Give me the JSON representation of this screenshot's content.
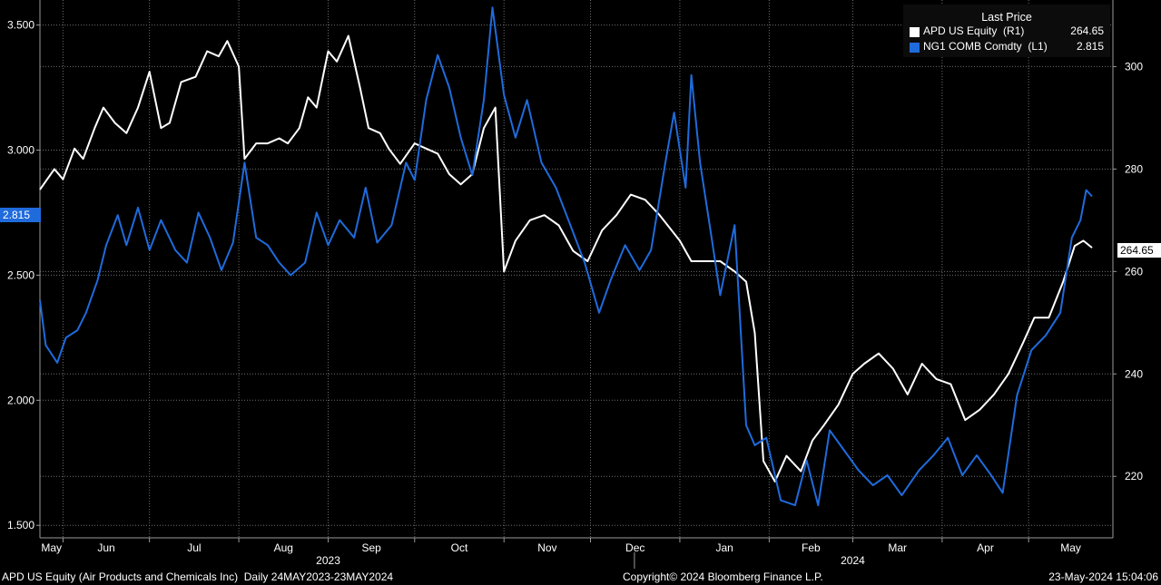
{
  "legend": {
    "title": "Last Price",
    "items": [
      {
        "name": "APD US Equity  (R1)",
        "value": "264.65",
        "color": "#ffffff"
      },
      {
        "name": "NG1 COMB Comdty  (L1)",
        "value": "2.815",
        "color": "#1f6bdc"
      }
    ]
  },
  "footer": {
    "left": "APD US Equity (Air Products and Chemicals Inc)  Daily 24MAY2023-23MAY2024",
    "center": "Copyright© 2024 Bloomberg Finance L.P.",
    "right": "23-May-2024 15:04:06"
  },
  "tags": {
    "left": "2.815",
    "right": "264.65"
  },
  "chart_data": {
    "type": "line",
    "x_range": [
      "2023-05-24",
      "2024-05-23"
    ],
    "months": [
      {
        "label": "May",
        "date": "2023-05-01"
      },
      {
        "label": "Jun",
        "date": "2023-06-01"
      },
      {
        "label": "Jul",
        "date": "2023-07-01"
      },
      {
        "label": "Aug",
        "date": "2023-08-01"
      },
      {
        "label": "Sep",
        "date": "2023-09-01"
      },
      {
        "label": "Oct",
        "date": "2023-10-01"
      },
      {
        "label": "Nov",
        "date": "2023-11-01"
      },
      {
        "label": "Dec",
        "date": "2023-12-01"
      },
      {
        "label": "Jan",
        "date": "2024-01-01"
      },
      {
        "label": "Feb",
        "date": "2024-02-01"
      },
      {
        "label": "Mar",
        "date": "2024-03-01"
      },
      {
        "label": "Apr",
        "date": "2024-04-01"
      },
      {
        "label": "May",
        "date": "2024-05-01"
      }
    ],
    "years": [
      {
        "label": "2023",
        "date": "2023-09-01"
      },
      {
        "label": "2024",
        "date": "2024-03-01"
      }
    ],
    "left_axis": {
      "range": [
        1.45,
        3.6
      ],
      "ticks": [
        "1.500",
        "2.000",
        "2.500",
        "3.000",
        "3.500"
      ]
    },
    "right_axis": {
      "range": [
        208,
        313
      ],
      "ticks": [
        "220",
        "240",
        "260",
        "280",
        "300"
      ]
    },
    "series": [
      {
        "name": "APD US Equity",
        "axis": "right",
        "color": "#ffffff",
        "points": [
          [
            "2023-05-24",
            276
          ],
          [
            "2023-05-29",
            280
          ],
          [
            "2023-06-01",
            278
          ],
          [
            "2023-06-05",
            284
          ],
          [
            "2023-06-08",
            282
          ],
          [
            "2023-06-12",
            288
          ],
          [
            "2023-06-15",
            292
          ],
          [
            "2023-06-19",
            289
          ],
          [
            "2023-06-23",
            287
          ],
          [
            "2023-06-27",
            292
          ],
          [
            "2023-07-01",
            299
          ],
          [
            "2023-07-05",
            288
          ],
          [
            "2023-07-08",
            289
          ],
          [
            "2023-07-12",
            297
          ],
          [
            "2023-07-17",
            298
          ],
          [
            "2023-07-21",
            303
          ],
          [
            "2023-07-25",
            302
          ],
          [
            "2023-07-28",
            305
          ],
          [
            "2023-08-01",
            300
          ],
          [
            "2023-08-03",
            282
          ],
          [
            "2023-08-07",
            285
          ],
          [
            "2023-08-11",
            285
          ],
          [
            "2023-08-15",
            286
          ],
          [
            "2023-08-18",
            285
          ],
          [
            "2023-08-22",
            288
          ],
          [
            "2023-08-25",
            294
          ],
          [
            "2023-08-28",
            292
          ],
          [
            "2023-09-01",
            303
          ],
          [
            "2023-09-04",
            301
          ],
          [
            "2023-09-08",
            306
          ],
          [
            "2023-09-12",
            296
          ],
          [
            "2023-09-15",
            288
          ],
          [
            "2023-09-19",
            287
          ],
          [
            "2023-09-22",
            284
          ],
          [
            "2023-09-26",
            281
          ],
          [
            "2023-10-01",
            285
          ],
          [
            "2023-10-05",
            284
          ],
          [
            "2023-10-09",
            283
          ],
          [
            "2023-10-13",
            279
          ],
          [
            "2023-10-17",
            277
          ],
          [
            "2023-10-21",
            279
          ],
          [
            "2023-10-25",
            288
          ],
          [
            "2023-10-29",
            292
          ],
          [
            "2023-11-01",
            260
          ],
          [
            "2023-11-05",
            266
          ],
          [
            "2023-11-10",
            270
          ],
          [
            "2023-11-15",
            271
          ],
          [
            "2023-11-20",
            269
          ],
          [
            "2023-11-25",
            264
          ],
          [
            "2023-11-30",
            262
          ],
          [
            "2023-12-05",
            268
          ],
          [
            "2023-12-10",
            271
          ],
          [
            "2023-12-15",
            275
          ],
          [
            "2023-12-20",
            274
          ],
          [
            "2023-12-25",
            271
          ],
          [
            "2024-01-01",
            266
          ],
          [
            "2024-01-05",
            262
          ],
          [
            "2024-01-10",
            262
          ],
          [
            "2024-01-15",
            262
          ],
          [
            "2024-01-20",
            260
          ],
          [
            "2024-01-24",
            258
          ],
          [
            "2024-01-27",
            248
          ],
          [
            "2024-01-30",
            223
          ],
          [
            "2024-02-03",
            219
          ],
          [
            "2024-02-07",
            224
          ],
          [
            "2024-02-12",
            221
          ],
          [
            "2024-02-16",
            227
          ],
          [
            "2024-02-20",
            230
          ],
          [
            "2024-02-25",
            234
          ],
          [
            "2024-03-01",
            240
          ],
          [
            "2024-03-05",
            242
          ],
          [
            "2024-03-10",
            244
          ],
          [
            "2024-03-15",
            241
          ],
          [
            "2024-03-20",
            236
          ],
          [
            "2024-03-25",
            242
          ],
          [
            "2024-03-30",
            239
          ],
          [
            "2024-04-04",
            238
          ],
          [
            "2024-04-09",
            231
          ],
          [
            "2024-04-14",
            233
          ],
          [
            "2024-04-19",
            236
          ],
          [
            "2024-04-24",
            240
          ],
          [
            "2024-04-29",
            246
          ],
          [
            "2024-05-03",
            251
          ],
          [
            "2024-05-08",
            251
          ],
          [
            "2024-05-13",
            258
          ],
          [
            "2024-05-17",
            265
          ],
          [
            "2024-05-20",
            266
          ],
          [
            "2024-05-23",
            264.65
          ]
        ]
      },
      {
        "name": "NG1 COMB Comdty",
        "axis": "left",
        "color": "#1f6bdc",
        "points": [
          [
            "2023-05-24",
            2.4
          ],
          [
            "2023-05-26",
            2.22
          ],
          [
            "2023-05-30",
            2.15
          ],
          [
            "2023-06-02",
            2.25
          ],
          [
            "2023-06-06",
            2.28
          ],
          [
            "2023-06-09",
            2.35
          ],
          [
            "2023-06-13",
            2.48
          ],
          [
            "2023-06-16",
            2.62
          ],
          [
            "2023-06-20",
            2.74
          ],
          [
            "2023-06-23",
            2.62
          ],
          [
            "2023-06-27",
            2.77
          ],
          [
            "2023-07-01",
            2.6
          ],
          [
            "2023-07-05",
            2.72
          ],
          [
            "2023-07-10",
            2.6
          ],
          [
            "2023-07-14",
            2.55
          ],
          [
            "2023-07-18",
            2.75
          ],
          [
            "2023-07-22",
            2.65
          ],
          [
            "2023-07-26",
            2.52
          ],
          [
            "2023-07-30",
            2.63
          ],
          [
            "2023-08-03",
            2.95
          ],
          [
            "2023-08-07",
            2.65
          ],
          [
            "2023-08-11",
            2.62
          ],
          [
            "2023-08-15",
            2.55
          ],
          [
            "2023-08-19",
            2.5
          ],
          [
            "2023-08-24",
            2.55
          ],
          [
            "2023-08-28",
            2.75
          ],
          [
            "2023-09-01",
            2.62
          ],
          [
            "2023-09-05",
            2.72
          ],
          [
            "2023-09-10",
            2.65
          ],
          [
            "2023-09-14",
            2.85
          ],
          [
            "2023-09-18",
            2.63
          ],
          [
            "2023-09-23",
            2.7
          ],
          [
            "2023-09-28",
            2.95
          ],
          [
            "2023-10-01",
            2.88
          ],
          [
            "2023-10-05",
            3.2
          ],
          [
            "2023-10-09",
            3.38
          ],
          [
            "2023-10-13",
            3.25
          ],
          [
            "2023-10-17",
            3.05
          ],
          [
            "2023-10-21",
            2.9
          ],
          [
            "2023-10-25",
            3.2
          ],
          [
            "2023-10-28",
            3.57
          ],
          [
            "2023-11-01",
            3.22
          ],
          [
            "2023-11-05",
            3.05
          ],
          [
            "2023-11-09",
            3.2
          ],
          [
            "2023-11-14",
            2.95
          ],
          [
            "2023-11-19",
            2.85
          ],
          [
            "2023-11-24",
            2.7
          ],
          [
            "2023-11-29",
            2.55
          ],
          [
            "2023-12-04",
            2.35
          ],
          [
            "2023-12-08",
            2.48
          ],
          [
            "2023-12-13",
            2.62
          ],
          [
            "2023-12-18",
            2.52
          ],
          [
            "2023-12-22",
            2.6
          ],
          [
            "2023-12-27",
            2.95
          ],
          [
            "2023-12-30",
            3.15
          ],
          [
            "2024-01-03",
            2.85
          ],
          [
            "2024-01-05",
            3.3
          ],
          [
            "2024-01-08",
            2.95
          ],
          [
            "2024-01-12",
            2.65
          ],
          [
            "2024-01-15",
            2.42
          ],
          [
            "2024-01-20",
            2.7
          ],
          [
            "2024-01-24",
            1.9
          ],
          [
            "2024-01-27",
            1.82
          ],
          [
            "2024-01-31",
            1.85
          ],
          [
            "2024-02-05",
            1.6
          ],
          [
            "2024-02-10",
            1.58
          ],
          [
            "2024-02-14",
            1.76
          ],
          [
            "2024-02-18",
            1.58
          ],
          [
            "2024-02-22",
            1.88
          ],
          [
            "2024-02-27",
            1.8
          ],
          [
            "2024-03-03",
            1.72
          ],
          [
            "2024-03-08",
            1.66
          ],
          [
            "2024-03-13",
            1.7
          ],
          [
            "2024-03-18",
            1.62
          ],
          [
            "2024-03-24",
            1.72
          ],
          [
            "2024-03-29",
            1.78
          ],
          [
            "2024-04-03",
            1.85
          ],
          [
            "2024-04-08",
            1.7
          ],
          [
            "2024-04-13",
            1.78
          ],
          [
            "2024-04-18",
            1.7
          ],
          [
            "2024-04-22",
            1.63
          ],
          [
            "2024-04-27",
            2.02
          ],
          [
            "2024-05-02",
            2.2
          ],
          [
            "2024-05-07",
            2.26
          ],
          [
            "2024-05-12",
            2.35
          ],
          [
            "2024-05-16",
            2.65
          ],
          [
            "2024-05-19",
            2.72
          ],
          [
            "2024-05-21",
            2.84
          ],
          [
            "2024-05-23",
            2.815
          ]
        ]
      }
    ]
  }
}
